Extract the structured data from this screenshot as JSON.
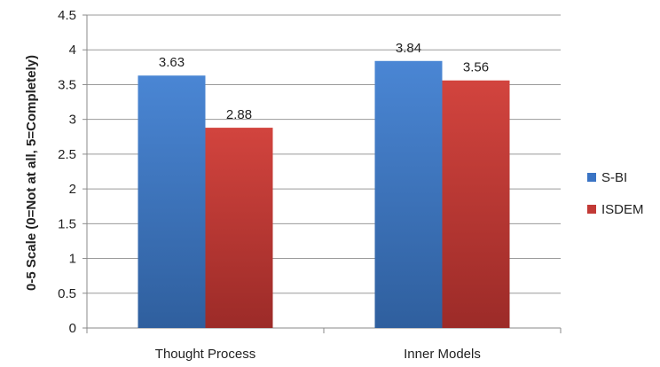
{
  "chart_data": {
    "type": "bar",
    "categories": [
      "Thought Process",
      "Inner Models"
    ],
    "series": [
      {
        "name": "S-BI",
        "values": [
          3.63,
          3.84
        ],
        "color": "#3a74c4"
      },
      {
        "name": "ISDEM",
        "values": [
          2.88,
          3.56
        ],
        "color": "#c23a36"
      }
    ],
    "ylabel": "0-5 Scale (0=Not at all, 5=Completely)",
    "ylim": [
      0,
      4.5
    ],
    "yticks": [
      "0",
      "0.5",
      "1",
      "1.5",
      "2",
      "2.5",
      "3",
      "3.5",
      "4",
      "4.5"
    ],
    "grid": true,
    "legend_position": "right"
  }
}
